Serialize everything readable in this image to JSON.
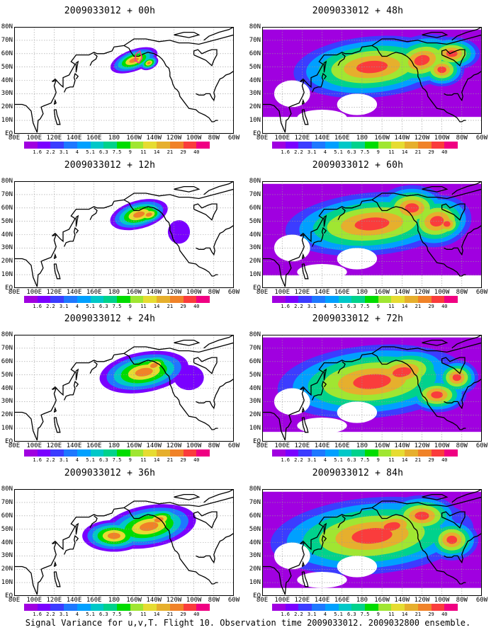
{
  "footer": "Signal Variance for u,v,T. Flight 10. Observation time 2009033012. 2009032800 ensemble.",
  "lat_labels": [
    "80N",
    "70N",
    "60N",
    "50N",
    "40N",
    "30N",
    "20N",
    "10N",
    "EQ"
  ],
  "lon_labels": [
    "80E",
    "100E",
    "120E",
    "140E",
    "160E",
    "180",
    "160W",
    "140W",
    "120W",
    "100W",
    "80W",
    "60W"
  ],
  "colorbar": {
    "levels": [
      "1.6",
      "2.2",
      "3.1",
      "4",
      "5.1",
      "6.3",
      "7.5",
      "9",
      "11",
      "14",
      "21",
      "29",
      "40"
    ],
    "colors": [
      "#a000e0",
      "#7a00ff",
      "#3c3cff",
      "#1e78ff",
      "#00a0ff",
      "#00c8c8",
      "#00d28c",
      "#00dc00",
      "#a0e632",
      "#e6dc32",
      "#e6af2d",
      "#f08228",
      "#fa3c3c",
      "#f00082"
    ]
  },
  "colors": {
    "background": "#ffffff",
    "coast": "#000000",
    "grid": "#9a9a9a",
    "highlight": "#ff3090"
  },
  "panels": [
    {
      "title": "2009033012 + 00h",
      "spread": 0.25
    },
    {
      "title": "2009033012 + 48h",
      "spread": 0.85
    },
    {
      "title": "2009033012 + 12h",
      "spread": 0.45
    },
    {
      "title": "2009033012 + 60h",
      "spread": 0.92
    },
    {
      "title": "2009033012 + 24h",
      "spread": 0.6
    },
    {
      "title": "2009033012 + 72h",
      "spread": 0.97
    },
    {
      "title": "2009033012 + 36h",
      "spread": 0.72
    },
    {
      "title": "2009033012 + 84h",
      "spread": 1.0
    }
  ]
}
